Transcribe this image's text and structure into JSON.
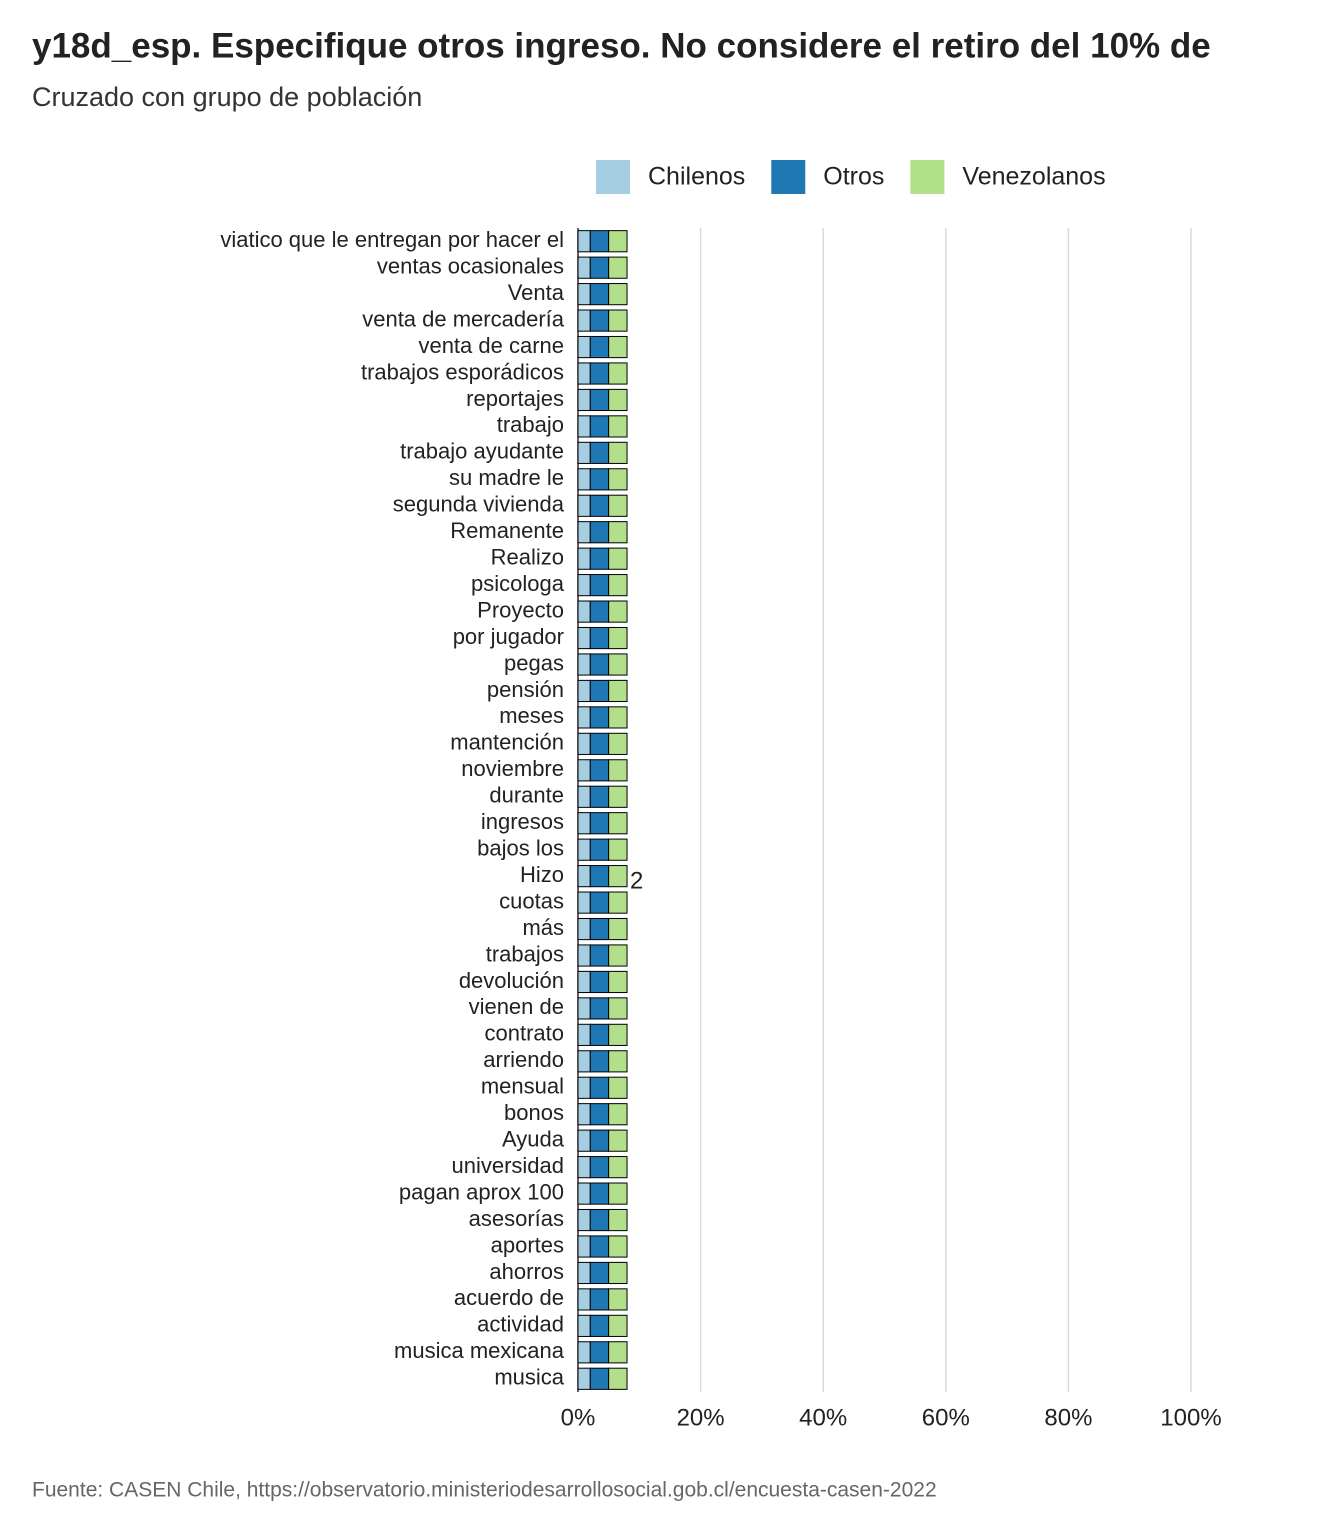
{
  "chart_data": {
    "type": "hbar_stacked",
    "title": "y18d_esp. Especifique otros ingreso. No considere el retiro del 10% de",
    "subtitle": "Cruzado con grupo de población",
    "source": "Fuente: CASEN Chile, https://observatorio.ministeriodesarrollosocial.gob.cl/encuesta-casen-2022",
    "annotation": "2",
    "categories": [
      "viatico que le entregan por hacer el",
      "ventas ocasionales",
      "Venta",
      "venta de mercadería",
      "venta de carne",
      "trabajos esporádicos",
      "reportajes",
      "trabajo",
      "trabajo ayudante",
      "su madre le",
      "segunda vivienda",
      "Remanente",
      "Realizo",
      "psicologa",
      "Proyecto",
      "por jugador",
      "pegas",
      "pensión",
      "meses",
      "mantención",
      "noviembre",
      "durante",
      "ingresos",
      "bajos los",
      "Hizo",
      "cuotas",
      "más",
      "trabajos",
      "devolución",
      "vienen de",
      "contrato",
      "arriendo",
      "mensual",
      "bonos",
      "Ayuda",
      "universidad",
      "pagan aprox 100",
      "asesorías",
      "aportes",
      "ahorros",
      "acuerdo de",
      "actividad",
      "musica mexicana",
      "musica"
    ],
    "series": [
      {
        "name": "Chilenos",
        "color": "#a6cee3",
        "values": [
          2,
          2,
          2,
          2,
          2,
          2,
          2,
          2,
          2,
          2,
          2,
          2,
          2,
          2,
          2,
          2,
          2,
          2,
          2,
          2,
          2,
          2,
          2,
          2,
          2,
          2,
          2,
          2,
          2,
          2,
          2,
          2,
          2,
          2,
          2,
          2,
          2,
          2,
          2,
          2,
          2,
          2,
          2,
          2
        ]
      },
      {
        "name": "Otros",
        "color": "#1f78b4",
        "values": [
          3,
          3,
          3,
          3,
          3,
          3,
          3,
          3,
          3,
          3,
          3,
          3,
          3,
          3,
          3,
          3,
          3,
          3,
          3,
          3,
          3,
          3,
          3,
          3,
          3,
          3,
          3,
          3,
          3,
          3,
          3,
          3,
          3,
          3,
          3,
          3,
          3,
          3,
          3,
          3,
          3,
          3,
          3,
          3
        ]
      },
      {
        "name": "Venezolanos",
        "color": "#b2df8a",
        "values": [
          3,
          3,
          3,
          3,
          3,
          3,
          3,
          3,
          3,
          3,
          3,
          3,
          3,
          3,
          3,
          3,
          3,
          3,
          3,
          3,
          3,
          3,
          3,
          3,
          3,
          3,
          3,
          3,
          3,
          3,
          3,
          3,
          3,
          3,
          3,
          3,
          3,
          3,
          3,
          3,
          3,
          3,
          3,
          3
        ]
      }
    ],
    "xlim": [
      0,
      100
    ],
    "xticks": [
      {
        "value": 0,
        "label": "0%"
      },
      {
        "value": 20,
        "label": "20%"
      },
      {
        "value": 40,
        "label": "40%"
      },
      {
        "value": 60,
        "label": "60%"
      },
      {
        "value": 80,
        "label": "80%"
      },
      {
        "value": 100,
        "label": "100%"
      }
    ],
    "grid": true
  }
}
